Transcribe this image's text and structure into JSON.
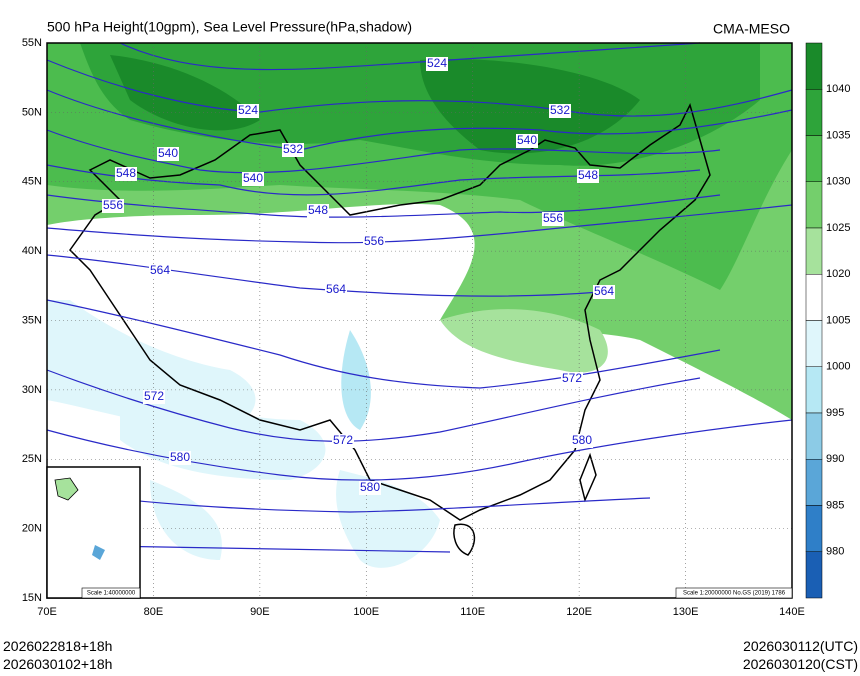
{
  "header": {
    "title": "500 hPa Height(10gpm), Sea Level Pressure(hPa,shadow)",
    "source": "CMA-MESO"
  },
  "lat_labels": [
    "55N",
    "50N",
    "45N",
    "40N",
    "35N",
    "30N",
    "25N",
    "20N",
    "15N"
  ],
  "lon_labels": [
    "70E",
    "80E",
    "90E",
    "100E",
    "110E",
    "120E",
    "130E",
    "140E"
  ],
  "colorbar": {
    "labels": [
      "1040",
      "1035",
      "1030",
      "1025",
      "1020",
      "1005",
      "1000",
      "995",
      "990",
      "985",
      "980"
    ],
    "colors": [
      "#1a8a2a",
      "#2ea43a",
      "#4cbc4e",
      "#74cf6c",
      "#a6e29c",
      "#ffffff",
      "#dff6fb",
      "#b6e8f4",
      "#8ccbe6",
      "#5aa6d8",
      "#2f7fc8",
      "#1a5fb4"
    ]
  },
  "contour_labels": [
    "524",
    "524",
    "532",
    "532",
    "540",
    "540",
    "540",
    "548",
    "548",
    "548",
    "556",
    "556",
    "556",
    "564",
    "564",
    "564",
    "572",
    "572",
    "572",
    "580",
    "580",
    "580"
  ],
  "inset": {
    "scale": "Scale 1:40000000"
  },
  "map_scale": "Scale 1:20000000 No.GS (2019) 1786",
  "footer": {
    "run_utc": "2026022818+18h",
    "run_cst": "2026030102+18h",
    "valid_utc": "2026030112(UTC)",
    "valid_cst": "2026030120(CST)"
  }
}
